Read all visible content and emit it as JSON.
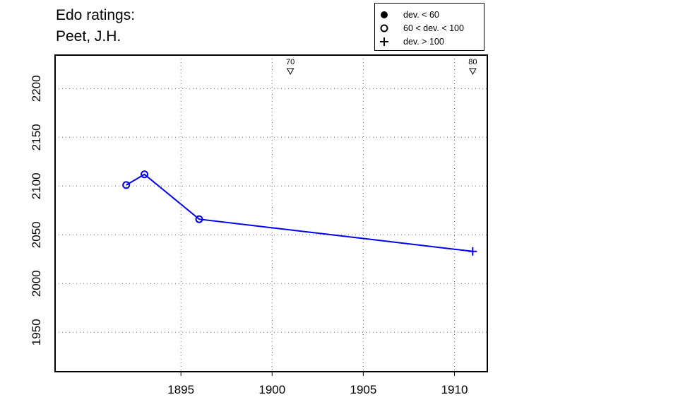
{
  "title_line1": "Edo ratings:",
  "title_line2": "Peet, J.H.",
  "legend": [
    {
      "label": "dev. < 60",
      "symbol": "filled-circle"
    },
    {
      "label": "60 < dev. < 100",
      "symbol": "open-circle"
    },
    {
      "label": "dev. > 100",
      "symbol": "plus"
    }
  ],
  "chart_data": {
    "type": "line",
    "series": [
      {
        "color": "#0000ee",
        "points": [
          {
            "x": 1892,
            "y": 2101,
            "marker": "open-circle"
          },
          {
            "x": 1893,
            "y": 2112,
            "marker": "open-circle"
          },
          {
            "x": 1896,
            "y": 2066,
            "marker": "open-circle"
          },
          {
            "x": 1911,
            "y": 2033,
            "marker": "plus"
          }
        ]
      }
    ],
    "annotations": [
      {
        "x": 1901,
        "label": "70",
        "marker": "down-triangle"
      },
      {
        "x": 1911,
        "label": "80",
        "marker": "down-triangle"
      }
    ],
    "xlim": [
      1888.1,
      1911.8
    ],
    "ylim": [
      1909.6,
      2234.3
    ],
    "xticks": [
      "1895",
      "1900",
      "1905",
      "1910"
    ],
    "yticks": [
      "1950",
      "2000",
      "2050",
      "2100",
      "2150",
      "2200"
    ],
    "grid": true
  }
}
